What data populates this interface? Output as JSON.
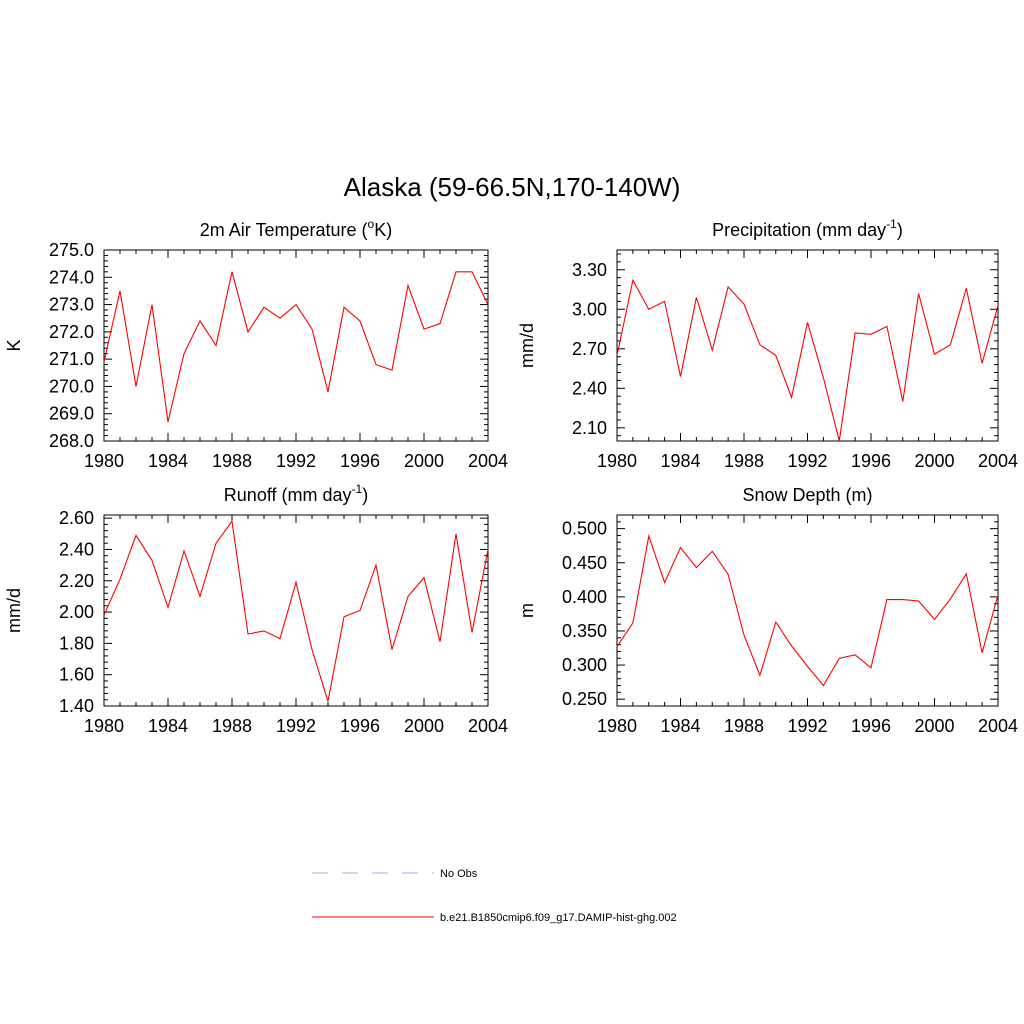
{
  "figure_title": "Alaska (59-66.5N,170-140W)",
  "legend": {
    "items": [
      {
        "label": "No Obs",
        "style": "dashed",
        "color": "#a9a9ee"
      },
      {
        "label": "b.e21.B1850cmip6.f09_g17.DAMIP-hist-ghg.002",
        "style": "solid",
        "color": "#ff0000"
      }
    ]
  },
  "chart_data": [
    {
      "type": "line",
      "title": "2m Air Temperature (°K)",
      "title_base": "2m Air Temperature (",
      "title_sup": "o",
      "title_tail": "K)",
      "ylabel": "K",
      "xlim": [
        1980,
        2004
      ],
      "ylim": [
        268.0,
        275.0
      ],
      "xticks": [
        "1980",
        "1984",
        "1988",
        "1992",
        "1996",
        "2000",
        "2004"
      ],
      "yticks": [
        "268.0",
        "269.0",
        "270.0",
        "271.0",
        "272.0",
        "273.0",
        "274.0",
        "275.0"
      ],
      "x": [
        1980,
        1981,
        1982,
        1983,
        1984,
        1985,
        1986,
        1987,
        1988,
        1989,
        1990,
        1991,
        1992,
        1993,
        1994,
        1995,
        1996,
        1997,
        1998,
        1999,
        2000,
        2001,
        2002,
        2003,
        2004
      ],
      "series": [
        {
          "name": "b.e21.B1850cmip6.f09_g17.DAMIP-hist-ghg.002",
          "color": "#ff0000",
          "values": [
            270.9,
            273.5,
            270.0,
            273.0,
            268.7,
            271.2,
            272.4,
            271.5,
            274.2,
            272.0,
            272.9,
            272.5,
            273.0,
            272.1,
            269.8,
            272.9,
            272.4,
            270.8,
            270.6,
            273.7,
            272.1,
            272.3,
            274.2,
            274.2,
            273.0
          ]
        }
      ]
    },
    {
      "type": "line",
      "title": "Precipitation (mm day-1)",
      "title_base": "Precipitation (mm day",
      "title_sup": "-1",
      "title_tail": ")",
      "ylabel": "mm/d",
      "xlim": [
        1980,
        2004
      ],
      "ylim": [
        2.0,
        3.45
      ],
      "xticks": [
        "1980",
        "1984",
        "1988",
        "1992",
        "1996",
        "2000",
        "2004"
      ],
      "yticks": [
        "2.10",
        "2.40",
        "2.70",
        "3.00",
        "3.30"
      ],
      "x": [
        1980,
        1981,
        1982,
        1983,
        1984,
        1985,
        1986,
        1987,
        1988,
        1989,
        1990,
        1991,
        1992,
        1993,
        1994,
        1995,
        1996,
        1997,
        1998,
        1999,
        2000,
        2001,
        2002,
        2003,
        2004
      ],
      "series": [
        {
          "name": "b.e21.B1850cmip6.f09_g17.DAMIP-hist-ghg.002",
          "color": "#ff0000",
          "values": [
            2.65,
            3.22,
            3.0,
            3.06,
            2.49,
            3.09,
            2.69,
            3.17,
            3.04,
            2.73,
            2.65,
            2.33,
            2.9,
            2.48,
            2.0,
            2.82,
            2.81,
            2.87,
            2.3,
            3.12,
            2.66,
            2.73,
            3.16,
            2.59,
            3.03
          ]
        }
      ]
    },
    {
      "type": "line",
      "title": "Runoff (mm day-1)",
      "title_base": "Runoff (mm day",
      "title_sup": "-1",
      "title_tail": ")",
      "ylabel": "mm/d",
      "xlim": [
        1980,
        2004
      ],
      "ylim": [
        1.4,
        2.62
      ],
      "xticks": [
        "1980",
        "1984",
        "1988",
        "1992",
        "1996",
        "2000",
        "2004"
      ],
      "yticks": [
        "1.40",
        "1.60",
        "1.80",
        "2.00",
        "2.20",
        "2.40",
        "2.60"
      ],
      "x": [
        1980,
        1981,
        1982,
        1983,
        1984,
        1985,
        1986,
        1987,
        1988,
        1989,
        1990,
        1991,
        1992,
        1993,
        1994,
        1995,
        1996,
        1997,
        1998,
        1999,
        2000,
        2001,
        2002,
        2003,
        2004
      ],
      "series": [
        {
          "name": "b.e21.B1850cmip6.f09_g17.DAMIP-hist-ghg.002",
          "color": "#ff0000",
          "values": [
            1.98,
            2.21,
            2.49,
            2.33,
            2.03,
            2.39,
            2.1,
            2.44,
            2.58,
            1.86,
            1.88,
            1.83,
            2.19,
            1.76,
            1.43,
            1.97,
            2.01,
            2.3,
            1.76,
            2.1,
            2.22,
            1.81,
            2.5,
            1.87,
            2.4
          ]
        }
      ]
    },
    {
      "type": "line",
      "title": "Snow Depth (m)",
      "ylabel": "m",
      "xlim": [
        1980,
        2004
      ],
      "ylim": [
        0.24,
        0.52
      ],
      "xticks": [
        "1980",
        "1984",
        "1988",
        "1992",
        "1996",
        "2000",
        "2004"
      ],
      "yticks": [
        "0.250",
        "0.300",
        "0.350",
        "0.400",
        "0.450",
        "0.500"
      ],
      "x": [
        1980,
        1981,
        1982,
        1983,
        1984,
        1985,
        1986,
        1987,
        1988,
        1989,
        1990,
        1991,
        1992,
        1993,
        1994,
        1995,
        1996,
        1997,
        1998,
        1999,
        2000,
        2001,
        2002,
        2003,
        2004
      ],
      "series": [
        {
          "name": "b.e21.B1850cmip6.f09_g17.DAMIP-hist-ghg.002",
          "color": "#ff0000",
          "values": [
            0.327,
            0.362,
            0.489,
            0.421,
            0.472,
            0.443,
            0.467,
            0.433,
            0.344,
            0.285,
            0.363,
            0.328,
            0.298,
            0.27,
            0.31,
            0.315,
            0.296,
            0.396,
            0.396,
            0.394,
            0.367,
            0.397,
            0.434,
            0.318,
            0.403
          ]
        }
      ]
    }
  ]
}
